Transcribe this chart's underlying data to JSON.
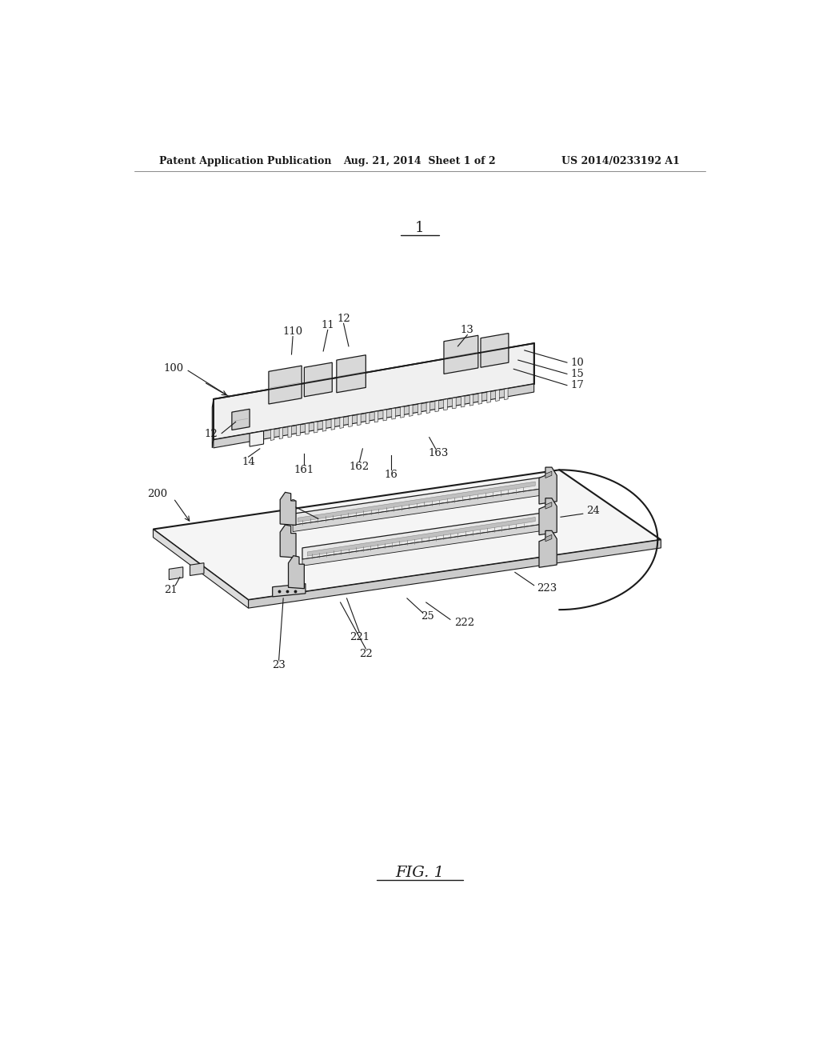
{
  "bg_color": "#ffffff",
  "header_left": "Patent Application Publication",
  "header_center": "Aug. 21, 2014  Sheet 1 of 2",
  "header_right": "US 2014/0233192 A1",
  "fig_label": "FIG. 1",
  "dark": "#1a1a1a",
  "mid": "#555555",
  "light_gray": "#cccccc",
  "pcb_face_color": "#f0f0f0",
  "pcb_edge_color": "#dddddd",
  "board_color": "#f5f5f5",
  "chip_color": "#d8d8d8",
  "slot_color": "#e0e0e0"
}
